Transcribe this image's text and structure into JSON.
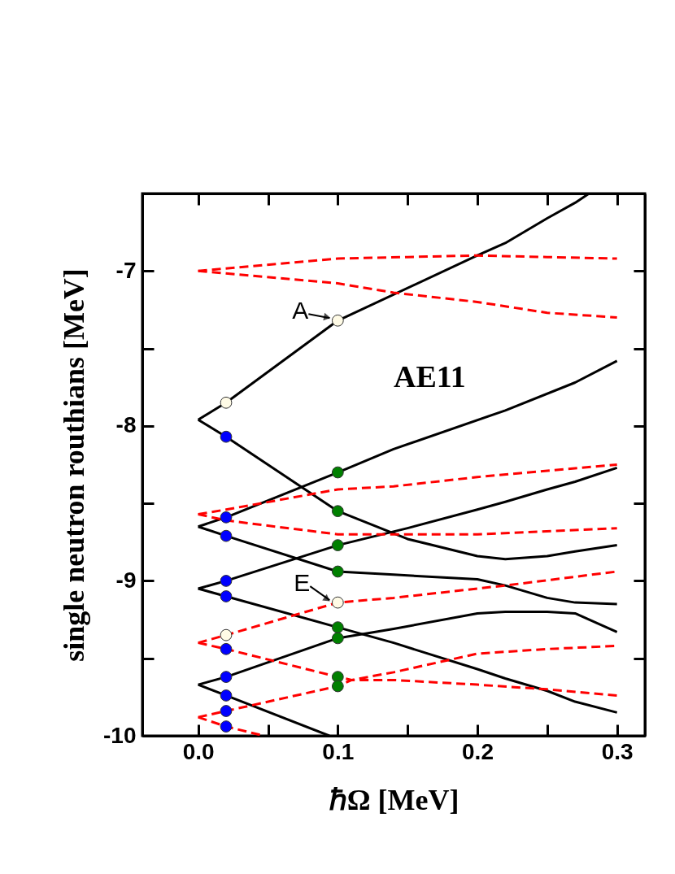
{
  "chart_data": {
    "type": "line",
    "xlabel": "ℏΩ  [MeV]",
    "ylabel": "single neutron routhians [MeV]",
    "xlim": [
      -0.04,
      0.32
    ],
    "ylim": [
      -10,
      -6.5
    ],
    "xticks": [
      {
        "value": 0,
        "label": "0.0"
      },
      {
        "value": 0.05,
        "label": null
      },
      0.1,
      {
        "value": 0.15,
        "label": null
      },
      0.2,
      {
        "value": 0.25,
        "label": null
      },
      0.3
    ],
    "yticks": [
      -10,
      {
        "value": -9.5,
        "label": null
      },
      -9,
      {
        "value": -8.5,
        "label": null
      },
      -8,
      {
        "value": -7.5,
        "label": null
      },
      -7
    ],
    "grid": false,
    "series": [
      {
        "color": "#000000",
        "line_style": "solid",
        "x": [
          0,
          0.02,
          0.1,
          0.2,
          0.22,
          0.25,
          0.27,
          0.28
        ],
        "values": [
          -7.96,
          -7.85,
          -7.32,
          -6.9,
          -6.82,
          -6.66,
          -6.56,
          -6.5
        ]
      },
      {
        "color": "#000000",
        "line_style": "solid",
        "x": [
          0,
          0.02,
          0.1,
          0.15,
          0.2,
          0.22,
          0.25,
          0.27,
          0.3
        ],
        "values": [
          -7.96,
          -8.07,
          -8.55,
          -8.73,
          -8.84,
          -8.86,
          -8.84,
          -8.81,
          -8.77
        ]
      },
      {
        "color": "#000000",
        "line_style": "solid",
        "x": [
          0,
          0.02,
          0.1,
          0.14,
          0.22,
          0.27,
          0.3
        ],
        "values": [
          -8.65,
          -8.59,
          -8.3,
          -8.15,
          -7.9,
          -7.72,
          -7.58
        ]
      },
      {
        "color": "#000000",
        "line_style": "solid",
        "x": [
          0,
          0.02,
          0.1,
          0.14,
          0.2,
          0.22,
          0.25,
          0.27,
          0.3
        ],
        "values": [
          -8.65,
          -8.71,
          -8.94,
          -8.96,
          -8.99,
          -9.03,
          -9.11,
          -9.14,
          -9.15
        ]
      },
      {
        "color": "#000000",
        "line_style": "solid",
        "x": [
          0,
          0.02,
          0.1,
          0.15,
          0.2,
          0.22,
          0.25,
          0.27,
          0.3
        ],
        "values": [
          -9.05,
          -9.0,
          -8.77,
          -8.66,
          -8.54,
          -8.49,
          -8.41,
          -8.36,
          -8.27
        ]
      },
      {
        "color": "#000000",
        "line_style": "solid",
        "x": [
          0,
          0.02,
          0.1,
          0.14,
          0.2,
          0.22,
          0.25,
          0.27,
          0.3
        ],
        "values": [
          -9.05,
          -9.1,
          -9.3,
          -9.4,
          -9.57,
          -9.63,
          -9.71,
          -9.78,
          -9.85
        ]
      },
      {
        "color": "#000000",
        "line_style": "solid",
        "x": [
          0,
          0.02,
          0.1,
          0.14,
          0.2,
          0.22,
          0.25,
          0.27,
          0.3
        ],
        "values": [
          -9.67,
          -9.62,
          -9.37,
          -9.31,
          -9.21,
          -9.2,
          -9.2,
          -9.21,
          -9.33
        ]
      },
      {
        "color": "#000000",
        "line_style": "solid",
        "x": [
          0,
          0.02,
          0.094
        ],
        "values": [
          -9.67,
          -9.74,
          -10.0
        ]
      },
      {
        "color": "#ff0000",
        "line_style": "dashed",
        "x": [
          0,
          0.1,
          0.15,
          0.2,
          0.25,
          0.3
        ],
        "values": [
          -7.0,
          -6.92,
          -6.91,
          -6.9,
          -6.91,
          -6.92
        ]
      },
      {
        "color": "#ff0000",
        "line_style": "dashed",
        "x": [
          0,
          0.1,
          0.14,
          0.2,
          0.25,
          0.3
        ],
        "values": [
          -7.0,
          -7.08,
          -7.14,
          -7.2,
          -7.27,
          -7.3
        ]
      },
      {
        "color": "#ff0000",
        "line_style": "dashed",
        "x": [
          0,
          0.02,
          0.1,
          0.14,
          0.2,
          0.3
        ],
        "values": [
          -8.57,
          -8.54,
          -8.41,
          -8.39,
          -8.33,
          -8.25
        ]
      },
      {
        "color": "#ff0000",
        "line_style": "dashed",
        "x": [
          0,
          0.02,
          0.1,
          0.14,
          0.2,
          0.3
        ],
        "values": [
          -8.57,
          -8.61,
          -8.7,
          -8.7,
          -8.7,
          -8.66
        ]
      },
      {
        "color": "#ff0000",
        "line_style": "dashed",
        "x": [
          0,
          0.02,
          0.1,
          0.14,
          0.2,
          0.22,
          0.3
        ],
        "values": [
          -9.4,
          -9.35,
          -9.14,
          -9.11,
          -9.05,
          -9.03,
          -8.94
        ]
      },
      {
        "color": "#ff0000",
        "line_style": "dashed",
        "x": [
          0,
          0.02,
          0.1,
          0.11,
          0.14,
          0.2,
          0.25,
          0.3
        ],
        "values": [
          -9.4,
          -9.44,
          -9.62,
          -9.64,
          -9.64,
          -9.67,
          -9.7,
          -9.74
        ]
      },
      {
        "color": "#ff0000",
        "line_style": "dashed",
        "x": [
          0,
          0.02,
          0.1,
          0.11,
          0.14,
          0.2,
          0.25,
          0.3
        ],
        "values": [
          -9.88,
          -9.84,
          -9.68,
          -9.64,
          -9.59,
          -9.47,
          -9.44,
          -9.42
        ]
      },
      {
        "color": "#ff0000",
        "line_style": "dashed",
        "x": [
          0,
          0.02,
          0.047
        ],
        "values": [
          -9.88,
          -9.94,
          -10.0
        ]
      },
      {
        "type": "scatter",
        "color": "#0000ff",
        "marker": "circle",
        "x": [
          0.02,
          0.02,
          0.02,
          0.02,
          0.02,
          0.02,
          0.02,
          0.02,
          0.02,
          0.02
        ],
        "values": [
          -8.07,
          -8.59,
          -8.71,
          -9.0,
          -9.1,
          -9.44,
          -9.62,
          -9.74,
          -9.84,
          -9.94
        ]
      },
      {
        "type": "scatter",
        "color": "#008000",
        "marker": "circle",
        "x": [
          0.1,
          0.1,
          0.1,
          0.1,
          0.1,
          0.1,
          0.1,
          0.1
        ],
        "values": [
          -8.3,
          -8.55,
          -8.77,
          -8.94,
          -9.3,
          -9.37,
          -9.62,
          -9.68
        ]
      },
      {
        "type": "scatter",
        "color": "#fffbe6",
        "marker": "circle",
        "x": [
          0.02,
          0.1,
          0.02,
          0.1
        ],
        "values": [
          -7.85,
          -7.32,
          -9.35,
          -9.14
        ]
      }
    ],
    "annotations": [
      {
        "text": "A",
        "x": 0.1,
        "y": -7.32
      },
      {
        "text": "E",
        "x": 0.1,
        "y": -9.14
      },
      "AE11"
    ]
  }
}
